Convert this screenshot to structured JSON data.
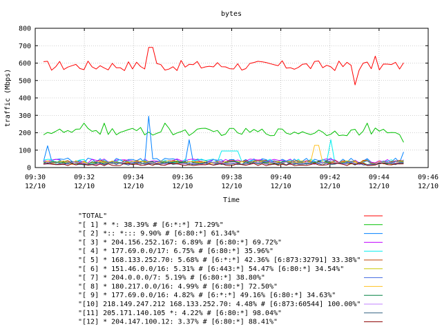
{
  "chart_data": {
    "type": "line",
    "title": "bytes",
    "xlabel": "Time",
    "ylabel": "traffic (Mbps)",
    "ylim": [
      0,
      800
    ],
    "yticks": [
      "0",
      "100",
      "200",
      "300",
      "400",
      "500",
      "600",
      "700",
      "800"
    ],
    "xlim": [
      "09:30",
      "09:46"
    ],
    "xticks": [
      {
        "time": "09:30",
        "date": "12/10"
      },
      {
        "time": "09:32",
        "date": "12/10"
      },
      {
        "time": "09:34",
        "date": "12/10"
      },
      {
        "time": "09:36",
        "date": "12/10"
      },
      {
        "time": "09:38",
        "date": "12/10"
      },
      {
        "time": "09:40",
        "date": "12/10"
      },
      {
        "time": "09:42",
        "date": "12/10"
      },
      {
        "time": "09:44",
        "date": "12/10"
      },
      {
        "time": "09:46",
        "date": "12/10"
      }
    ],
    "grid": true,
    "legend_position": "bottom",
    "series": [
      {
        "name": "\"TOTAL\"",
        "color": "#ff0000",
        "shape": "total",
        "base": 585,
        "amp": 30
      },
      {
        "name": "\"[ 1] * *: 38.39% # [6:*:*] 71.29%\"",
        "color": "#00c000",
        "shape": "green",
        "base": 205,
        "amp": 22
      },
      {
        "name": "\"[ 2] *:: *::: 9.90% # [6:80:*] 61.34%\"",
        "color": "#0080ff",
        "shape": "blue",
        "base": 40,
        "amp": 15
      },
      {
        "name": "\"[ 3] * 204.156.252.167: 6.89% # [6:80:*] 69.72%\"",
        "color": "#c000ff",
        "shape": "noise",
        "base": 38,
        "amp": 12
      },
      {
        "name": "\"[ 4] * 177.69.0.0/17: 6.75% # [6:80:*] 35.96%\"",
        "color": "#00eeee",
        "shape": "cyan",
        "base": 35,
        "amp": 14
      },
      {
        "name": "\"[ 5] * 168.133.252.70: 5.68% # [6:*:*] 42.36% [6:873:32791] 33.38%\"",
        "color": "#c04000",
        "shape": "noise",
        "base": 32,
        "amp": 10
      },
      {
        "name": "\"[ 6] * 151.46.0.0/16: 5.31% # [6:443:*] 54.47% [6:80:*] 34.54%\"",
        "color": "#c8c800",
        "shape": "noise",
        "base": 30,
        "amp": 10
      },
      {
        "name": "\"[ 7] * 204.0.0.0/7: 5.19% # [6:80:*] 38.80%\"",
        "color": "#4169e1",
        "shape": "noise",
        "base": 28,
        "amp": 10
      },
      {
        "name": "\"[ 8] * 180.217.0.0/16: 4.99% # [6:80:*] 72.50%\"",
        "color": "#ffc020",
        "shape": "yellow",
        "base": 27,
        "amp": 10
      },
      {
        "name": "\"[ 9] * 177.69.0.0/16: 4.82% # [6:*:*] 49.16% [6:80:*] 34.63%\"",
        "color": "#008040",
        "shape": "noise",
        "base": 26,
        "amp": 9
      },
      {
        "name": "\"[10] 218.149.247.212 168.133.252.70: 4.48% # [6:873:60544] 100.00%\"",
        "color": "#c080ff",
        "shape": "noise",
        "base": 24,
        "amp": 8
      },
      {
        "name": "\"[11] 205.171.140.105 *: 4.22% # [6:80:*] 98.04%\"",
        "color": "#306080",
        "shape": "noise",
        "base": 22,
        "amp": 8
      },
      {
        "name": "\"[12] * 204.147.100.12: 3.37% # [6:80:*] 88.41%\"",
        "color": "#8b0000",
        "shape": "noise",
        "base": 18,
        "amp": 7
      }
    ]
  }
}
